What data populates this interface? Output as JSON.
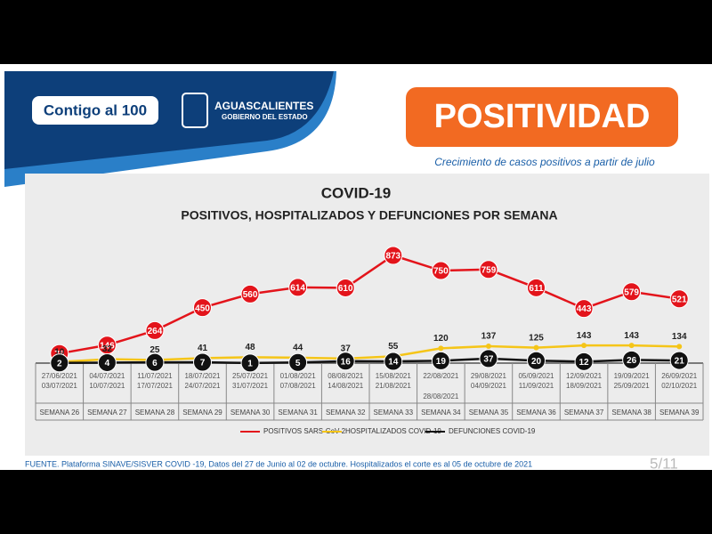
{
  "header": {
    "logo": "Contigo al 100",
    "state": "AGUASCALIENTES",
    "government": "GOBIERNO DEL ESTADO",
    "badge": "POSITIVIDAD",
    "subtitle": "Crecimiento de casos positivos a partir de julio"
  },
  "chart_data": {
    "type": "line",
    "title": "COVID-19",
    "subtitle": "POSITIVOS, HOSPITALIZADOS Y DEFUNCIONES POR SEMANA",
    "categories": [
      "SEMANA 26",
      "SEMANA 27",
      "SEMANA 28",
      "SEMANA 29",
      "SEMANA 30",
      "SEMANA 31",
      "SEMANA 32",
      "SEMANA 33",
      "SEMANA 34",
      "SEMANA 35",
      "SEMANA 36",
      "SEMANA 37",
      "SEMANA 38",
      "SEMANA 39"
    ],
    "date_ranges": [
      [
        "27/06/2021",
        "03/07/2021"
      ],
      [
        "04/07/2021",
        "10/07/2021"
      ],
      [
        "11/07/2021",
        "17/07/2021"
      ],
      [
        "18/07/2021",
        "24/07/2021"
      ],
      [
        "25/07/2021",
        "31/07/2021"
      ],
      [
        "01/08/2021",
        "07/08/2021"
      ],
      [
        "08/08/2021",
        "14/08/2021"
      ],
      [
        "15/08/2021",
        "21/08/2021"
      ],
      [
        "22/08/2021",
        "28/08/2021"
      ],
      [
        "29/08/2021",
        "04/09/2021"
      ],
      [
        "05/09/2021",
        "11/09/2021"
      ],
      [
        "12/09/2021",
        "18/09/2021"
      ],
      [
        "19/09/2021",
        "25/09/2021"
      ],
      [
        "26/09/2021",
        "02/10/2021"
      ]
    ],
    "series": [
      {
        "name": "POSITIVOS SARS-CoV-2",
        "color": "#e3141b",
        "values": [
          78,
          146,
          264,
          450,
          560,
          614,
          610,
          873,
          750,
          759,
          611,
          443,
          579,
          521
        ]
      },
      {
        "name": "HOSPITALIZADOS COVID-19",
        "color": "#f5c518",
        "values": [
          10,
          32,
          25,
          41,
          48,
          44,
          37,
          55,
          120,
          137,
          125,
          143,
          143,
          134
        ]
      },
      {
        "name": "DEFUNCIONES COVID-19",
        "color": "#111111",
        "values": [
          2,
          4,
          6,
          7,
          1,
          5,
          16,
          14,
          19,
          37,
          20,
          12,
          26,
          21
        ]
      }
    ]
  },
  "footer": {
    "source": "FUENTE. Plataforma SINAVE/SISVER COVID -19, Datos del 27 de Junio al 02 de octubre.  Hospitalizados el corte es al 05 de octubre de 2021",
    "page": "5/11"
  }
}
